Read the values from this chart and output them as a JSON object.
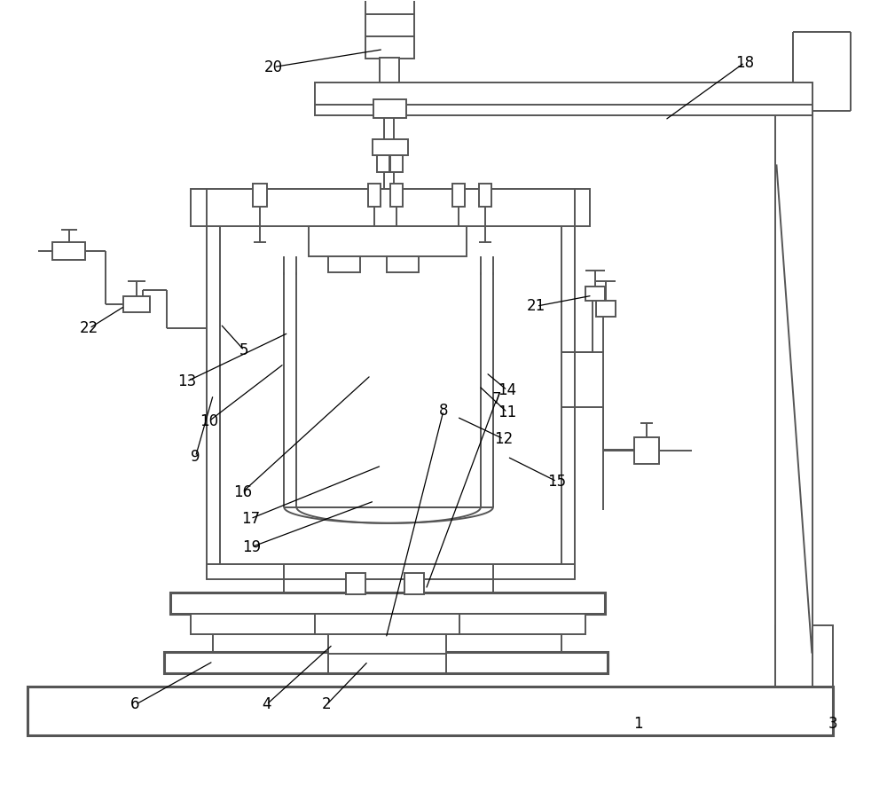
{
  "bg": "#ffffff",
  "lc": "#555555",
  "lw": 1.4,
  "lw_thick": 2.2,
  "fs": 12,
  "fig_w": 10.0,
  "fig_h": 8.85
}
